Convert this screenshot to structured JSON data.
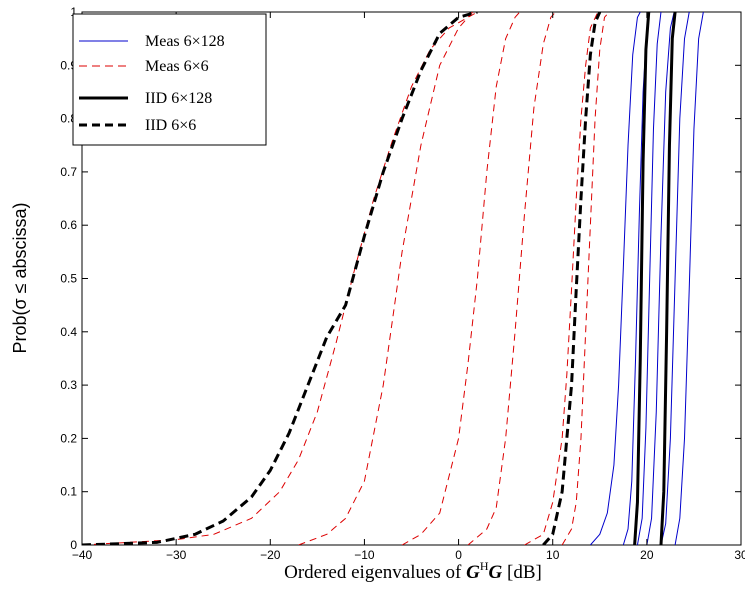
{
  "chart_data": {
    "type": "line",
    "xlabel_parts": [
      "Ordered eigenvalues of ",
      "G",
      "H",
      "G",
      " [dB]"
    ],
    "ylabel": "Prob(σ ≤ abscissa)",
    "xlim": [
      -40,
      30
    ],
    "ylim": [
      0,
      1
    ],
    "xticks": [
      -40,
      -30,
      -20,
      -10,
      0,
      10,
      20,
      30
    ],
    "yticks": [
      0,
      0.1,
      0.2,
      0.3,
      0.4,
      0.5,
      0.6,
      0.7,
      0.8,
      0.9,
      1
    ],
    "xtick_labels": [
      "−40",
      "−30",
      "−20",
      "−10",
      "0",
      "10",
      "20",
      "30"
    ],
    "ytick_labels": [
      "0",
      "0.1",
      "0.2",
      "0.3",
      "0.4",
      "0.5",
      "0.6",
      "0.7",
      "0.8",
      "0.9",
      "1"
    ],
    "grid": false,
    "legend_position": "top-left",
    "legend": [
      {
        "label": "Meas 6×128",
        "color": "#0000cc",
        "style": "solid",
        "width": 1
      },
      {
        "label": "Meas 6×6",
        "color": "#dd0000",
        "style": "dashed",
        "width": 1
      },
      {
        "label": "IID 6×128",
        "color": "#000000",
        "style": "solid",
        "width": 3
      },
      {
        "label": "IID 6×6",
        "color": "#000000",
        "style": "dashed",
        "width": 3
      }
    ],
    "series": [
      {
        "group": "Meas 6×6",
        "color": "#dd0000",
        "style": "dashed",
        "width": 1,
        "points": [
          [
            -40,
            0
          ],
          [
            -30,
            0.01
          ],
          [
            -26,
            0.02
          ],
          [
            -22,
            0.05
          ],
          [
            -19,
            0.1
          ],
          [
            -17,
            0.16
          ],
          [
            -15,
            0.25
          ],
          [
            -13,
            0.38
          ],
          [
            -11,
            0.52
          ],
          [
            -9,
            0.65
          ],
          [
            -7,
            0.76
          ],
          [
            -5,
            0.86
          ],
          [
            -3,
            0.93
          ],
          [
            -1,
            0.97
          ],
          [
            1,
            0.99
          ],
          [
            2,
            1
          ]
        ]
      },
      {
        "group": "Meas 6×6",
        "color": "#dd0000",
        "style": "dashed",
        "width": 1,
        "points": [
          [
            -17,
            0
          ],
          [
            -14,
            0.02
          ],
          [
            -12,
            0.05
          ],
          [
            -10,
            0.12
          ],
          [
            -8,
            0.3
          ],
          [
            -6,
            0.55
          ],
          [
            -4,
            0.75
          ],
          [
            -2,
            0.9
          ],
          [
            0,
            0.97
          ],
          [
            1.5,
            1
          ]
        ]
      },
      {
        "group": "Meas 6×6",
        "color": "#dd0000",
        "style": "dashed",
        "width": 1,
        "points": [
          [
            -6,
            0
          ],
          [
            -4,
            0.02
          ],
          [
            -2,
            0.06
          ],
          [
            0,
            0.2
          ],
          [
            1,
            0.34
          ],
          [
            2,
            0.5
          ],
          [
            3,
            0.7
          ],
          [
            4,
            0.86
          ],
          [
            5,
            0.95
          ],
          [
            6,
            0.99
          ],
          [
            6.5,
            1
          ]
        ]
      },
      {
        "group": "Meas 6×6",
        "color": "#dd0000",
        "style": "dashed",
        "width": 1,
        "points": [
          [
            1,
            0
          ],
          [
            3,
            0.03
          ],
          [
            4,
            0.07
          ],
          [
            5,
            0.2
          ],
          [
            6,
            0.4
          ],
          [
            7,
            0.62
          ],
          [
            8,
            0.82
          ],
          [
            9,
            0.94
          ],
          [
            9.8,
            0.99
          ],
          [
            10.3,
            1
          ]
        ]
      },
      {
        "group": "Meas 6×6",
        "color": "#dd0000",
        "style": "dashed",
        "width": 1,
        "points": [
          [
            7,
            0
          ],
          [
            9,
            0.02
          ],
          [
            10,
            0.08
          ],
          [
            11,
            0.2
          ],
          [
            11.5,
            0.32
          ],
          [
            12,
            0.48
          ],
          [
            12.5,
            0.65
          ],
          [
            13,
            0.8
          ],
          [
            13.5,
            0.9
          ],
          [
            14,
            0.97
          ],
          [
            14.8,
            1
          ]
        ]
      },
      {
        "group": "Meas 6×6",
        "color": "#dd0000",
        "style": "dashed",
        "width": 1,
        "points": [
          [
            11,
            0
          ],
          [
            12,
            0.03
          ],
          [
            12.5,
            0.08
          ],
          [
            13,
            0.2
          ],
          [
            13.5,
            0.4
          ],
          [
            14,
            0.6
          ],
          [
            14.5,
            0.8
          ],
          [
            15,
            0.93
          ],
          [
            15.5,
            0.99
          ],
          [
            16,
            1
          ]
        ]
      },
      {
        "group": "IID 6×6",
        "color": "#000000",
        "style": "dashed",
        "width": 3,
        "points": [
          [
            -40,
            0
          ],
          [
            -32,
            0.005
          ],
          [
            -28,
            0.02
          ],
          [
            -25,
            0.045
          ],
          [
            -22,
            0.09
          ],
          [
            -20,
            0.14
          ],
          [
            -18,
            0.21
          ],
          [
            -16,
            0.3
          ],
          [
            -14,
            0.39
          ],
          [
            -12,
            0.45
          ],
          [
            -10,
            0.58
          ],
          [
            -8,
            0.7
          ],
          [
            -6,
            0.8
          ],
          [
            -4,
            0.89
          ],
          [
            -2,
            0.96
          ],
          [
            0,
            0.99
          ],
          [
            2,
            1
          ]
        ]
      },
      {
        "group": "IID 6×6",
        "color": "#000000",
        "style": "dashed",
        "width": 3,
        "points": [
          [
            9,
            0
          ],
          [
            10,
            0.02
          ],
          [
            11,
            0.1
          ],
          [
            12,
            0.3
          ],
          [
            12.5,
            0.48
          ],
          [
            13,
            0.65
          ],
          [
            13.5,
            0.8
          ],
          [
            14,
            0.92
          ],
          [
            14.5,
            0.98
          ],
          [
            15,
            1
          ]
        ]
      },
      {
        "group": "Meas 6×128",
        "color": "#0000cc",
        "style": "solid",
        "width": 1,
        "points": [
          [
            14,
            0
          ],
          [
            15,
            0.02
          ],
          [
            15.8,
            0.06
          ],
          [
            16.5,
            0.15
          ],
          [
            17,
            0.3
          ],
          [
            17.5,
            0.52
          ],
          [
            18,
            0.75
          ],
          [
            18.5,
            0.92
          ],
          [
            19,
            0.99
          ],
          [
            19.3,
            1
          ]
        ]
      },
      {
        "group": "Meas 6×128",
        "color": "#0000cc",
        "style": "solid",
        "width": 1,
        "points": [
          [
            17.5,
            0
          ],
          [
            18,
            0.03
          ],
          [
            18.4,
            0.12
          ],
          [
            18.8,
            0.35
          ],
          [
            19.2,
            0.62
          ],
          [
            19.6,
            0.85
          ],
          [
            20,
            0.97
          ],
          [
            20.3,
            1
          ]
        ]
      },
      {
        "group": "Meas 6×128",
        "color": "#0000cc",
        "style": "solid",
        "width": 1,
        "points": [
          [
            19,
            0
          ],
          [
            19.5,
            0.05
          ],
          [
            19.9,
            0.22
          ],
          [
            20.3,
            0.5
          ],
          [
            20.7,
            0.78
          ],
          [
            21.1,
            0.94
          ],
          [
            21.5,
            1
          ]
        ]
      },
      {
        "group": "Meas 6×128",
        "color": "#0000cc",
        "style": "solid",
        "width": 1,
        "points": [
          [
            20,
            0
          ],
          [
            20.5,
            0.05
          ],
          [
            21,
            0.25
          ],
          [
            21.5,
            0.58
          ],
          [
            22,
            0.85
          ],
          [
            22.5,
            0.97
          ],
          [
            22.9,
            1
          ]
        ]
      },
      {
        "group": "Meas 6×128",
        "color": "#0000cc",
        "style": "solid",
        "width": 1,
        "points": [
          [
            21.5,
            0
          ],
          [
            22,
            0.04
          ],
          [
            22.5,
            0.2
          ],
          [
            23,
            0.5
          ],
          [
            23.5,
            0.8
          ],
          [
            24,
            0.95
          ],
          [
            24.5,
            1
          ]
        ]
      },
      {
        "group": "Meas 6×128",
        "color": "#0000cc",
        "style": "solid",
        "width": 1,
        "points": [
          [
            23,
            0
          ],
          [
            23.5,
            0.05
          ],
          [
            24,
            0.2
          ],
          [
            24.5,
            0.48
          ],
          [
            25,
            0.78
          ],
          [
            25.5,
            0.95
          ],
          [
            26,
            1
          ]
        ]
      },
      {
        "group": "IID 6×128",
        "color": "#000000",
        "style": "solid",
        "width": 3,
        "points": [
          [
            18.7,
            0
          ],
          [
            19,
            0.08
          ],
          [
            19.3,
            0.35
          ],
          [
            19.6,
            0.72
          ],
          [
            19.9,
            0.93
          ],
          [
            20.2,
            1
          ]
        ]
      },
      {
        "group": "IID 6×128",
        "color": "#000000",
        "style": "solid",
        "width": 3,
        "points": [
          [
            21.5,
            0
          ],
          [
            21.8,
            0.1
          ],
          [
            22.1,
            0.4
          ],
          [
            22.4,
            0.75
          ],
          [
            22.7,
            0.95
          ],
          [
            23,
            1
          ]
        ]
      }
    ]
  }
}
